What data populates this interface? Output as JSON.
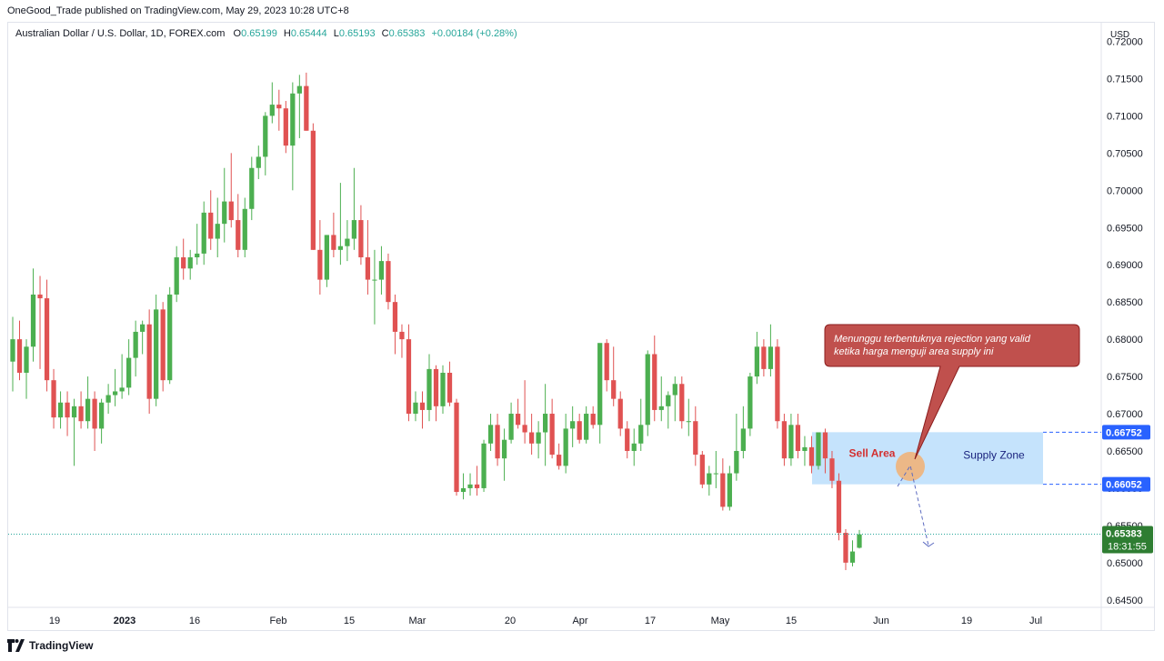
{
  "header": {
    "published_by": "OneGood_Trade published on TradingView.com, May 29, 2023 10:28 UTC+8"
  },
  "legend": {
    "symbol": "Australian Dollar / U.S. Dollar, 1D, FOREX.com",
    "o_label": "O",
    "o_value": "0.65199",
    "h_label": "H",
    "h_value": "0.65444",
    "l_label": "L",
    "l_value": "0.65193",
    "c_label": "C",
    "c_value": "0.65383",
    "change": "+0.00184 (+0.28%)"
  },
  "footer": {
    "brand": "TradingView"
  },
  "colors": {
    "up": "#4caf50",
    "down": "#e05252",
    "zone_fill": "#bbdefb",
    "callout_fill": "#c0504d",
    "callout_border": "#8b1e1e",
    "price_tag": "#2962ff",
    "last_price_tag": "#2e7d32",
    "marker": "#f0b27a"
  },
  "chart_data": {
    "type": "candlestick",
    "currency": "USD",
    "y_range": [
      0.644,
      0.7225
    ],
    "y_ticks": [
      "0.72000",
      "0.71500",
      "0.71000",
      "0.70500",
      "0.70000",
      "0.69500",
      "0.69000",
      "0.68500",
      "0.68000",
      "0.67500",
      "0.67000",
      "0.66500",
      "0.66000",
      "0.65500",
      "0.65000",
      "0.64500"
    ],
    "x_ticks": [
      "19",
      "2023",
      "16",
      "Feb",
      "15",
      "Mar",
      "20",
      "Apr",
      "17",
      "May",
      "15",
      "Jun",
      "19",
      "Jul"
    ],
    "last_price": "0.65383",
    "countdown": "18:31:55",
    "ohlc": [
      [
        0.677,
        0.683,
        0.673,
        0.68
      ],
      [
        0.68,
        0.6825,
        0.6745,
        0.6755
      ],
      [
        0.6755,
        0.68,
        0.672,
        0.679
      ],
      [
        0.679,
        0.6895,
        0.677,
        0.686
      ],
      [
        0.686,
        0.6885,
        0.676,
        0.6855
      ],
      [
        0.6855,
        0.688,
        0.673,
        0.6745
      ],
      [
        0.6745,
        0.676,
        0.668,
        0.6695
      ],
      [
        0.6695,
        0.673,
        0.668,
        0.6715
      ],
      [
        0.6715,
        0.673,
        0.667,
        0.6695
      ],
      [
        0.6695,
        0.672,
        0.663,
        0.671
      ],
      [
        0.671,
        0.673,
        0.668,
        0.669
      ],
      [
        0.669,
        0.675,
        0.668,
        0.672
      ],
      [
        0.672,
        0.673,
        0.665,
        0.668
      ],
      [
        0.668,
        0.672,
        0.666,
        0.6715
      ],
      [
        0.6715,
        0.674,
        0.67,
        0.6725
      ],
      [
        0.6725,
        0.676,
        0.671,
        0.673
      ],
      [
        0.673,
        0.678,
        0.672,
        0.6735
      ],
      [
        0.6735,
        0.68,
        0.6725,
        0.6775
      ],
      [
        0.6775,
        0.6825,
        0.675,
        0.681
      ],
      [
        0.681,
        0.6825,
        0.678,
        0.682
      ],
      [
        0.682,
        0.684,
        0.67,
        0.672
      ],
      [
        0.672,
        0.686,
        0.671,
        0.684
      ],
      [
        0.684,
        0.685,
        0.673,
        0.6745
      ],
      [
        0.6745,
        0.687,
        0.674,
        0.686
      ],
      [
        0.686,
        0.6925,
        0.685,
        0.691
      ],
      [
        0.691,
        0.6935,
        0.688,
        0.6895
      ],
      [
        0.6895,
        0.692,
        0.688,
        0.691
      ],
      [
        0.691,
        0.6955,
        0.69,
        0.6915
      ],
      [
        0.6915,
        0.6985,
        0.69,
        0.697
      ],
      [
        0.697,
        0.7,
        0.692,
        0.6935
      ],
      [
        0.6935,
        0.699,
        0.691,
        0.6955
      ],
      [
        0.6955,
        0.703,
        0.693,
        0.6985
      ],
      [
        0.6985,
        0.705,
        0.695,
        0.696
      ],
      [
        0.696,
        0.6995,
        0.691,
        0.692
      ],
      [
        0.692,
        0.699,
        0.691,
        0.6975
      ],
      [
        0.6975,
        0.7045,
        0.696,
        0.703
      ],
      [
        0.703,
        0.706,
        0.7015,
        0.7045
      ],
      [
        0.7045,
        0.7105,
        0.702,
        0.71
      ],
      [
        0.71,
        0.7145,
        0.709,
        0.7115
      ],
      [
        0.7115,
        0.7135,
        0.708,
        0.711
      ],
      [
        0.711,
        0.712,
        0.705,
        0.706
      ],
      [
        0.706,
        0.7145,
        0.7,
        0.713
      ],
      [
        0.713,
        0.7155,
        0.707,
        0.714
      ],
      [
        0.714,
        0.7158,
        0.708,
        0.708
      ],
      [
        0.708,
        0.709,
        0.692,
        0.692
      ],
      [
        0.692,
        0.696,
        0.686,
        0.688
      ],
      [
        0.688,
        0.694,
        0.687,
        0.694
      ],
      [
        0.694,
        0.697,
        0.691,
        0.692
      ],
      [
        0.692,
        0.701,
        0.69,
        0.6925
      ],
      [
        0.6925,
        0.696,
        0.6905,
        0.6935
      ],
      [
        0.6935,
        0.703,
        0.692,
        0.696
      ],
      [
        0.696,
        0.698,
        0.69,
        0.691
      ],
      [
        0.691,
        0.696,
        0.686,
        0.688
      ],
      [
        0.688,
        0.692,
        0.682,
        0.688
      ],
      [
        0.688,
        0.6925,
        0.686,
        0.6905
      ],
      [
        0.6905,
        0.6915,
        0.684,
        0.685
      ],
      [
        0.685,
        0.686,
        0.678,
        0.681
      ],
      [
        0.681,
        0.682,
        0.6775,
        0.68
      ],
      [
        0.68,
        0.682,
        0.669,
        0.67
      ],
      [
        0.67,
        0.673,
        0.669,
        0.6715
      ],
      [
        0.6715,
        0.673,
        0.668,
        0.6705
      ],
      [
        0.6705,
        0.678,
        0.669,
        0.676
      ],
      [
        0.676,
        0.6765,
        0.669,
        0.671
      ],
      [
        0.671,
        0.6765,
        0.67,
        0.6755
      ],
      [
        0.6755,
        0.677,
        0.671,
        0.6715
      ],
      [
        0.6715,
        0.672,
        0.659,
        0.6595
      ],
      [
        0.6595,
        0.662,
        0.6585,
        0.66
      ],
      [
        0.66,
        0.662,
        0.659,
        0.6605
      ],
      [
        0.6605,
        0.663,
        0.659,
        0.66
      ],
      [
        0.66,
        0.6665,
        0.6595,
        0.666
      ],
      [
        0.666,
        0.67,
        0.665,
        0.6685
      ],
      [
        0.6685,
        0.67,
        0.663,
        0.664
      ],
      [
        0.664,
        0.668,
        0.661,
        0.6665
      ],
      [
        0.6665,
        0.6715,
        0.666,
        0.67
      ],
      [
        0.67,
        0.672,
        0.668,
        0.6685
      ],
      [
        0.6685,
        0.6745,
        0.666,
        0.6675
      ],
      [
        0.6675,
        0.67,
        0.6645,
        0.666
      ],
      [
        0.666,
        0.669,
        0.664,
        0.6675
      ],
      [
        0.6675,
        0.674,
        0.663,
        0.67
      ],
      [
        0.67,
        0.672,
        0.664,
        0.6645
      ],
      [
        0.6645,
        0.666,
        0.6625,
        0.663
      ],
      [
        0.663,
        0.67,
        0.662,
        0.668
      ],
      [
        0.668,
        0.671,
        0.6655,
        0.669
      ],
      [
        0.669,
        0.67,
        0.666,
        0.6665
      ],
      [
        0.6665,
        0.671,
        0.666,
        0.67
      ],
      [
        0.67,
        0.671,
        0.668,
        0.6685
      ],
      [
        0.6685,
        0.679,
        0.666,
        0.6795
      ],
      [
        0.6795,
        0.68,
        0.673,
        0.6745
      ],
      [
        0.6745,
        0.679,
        0.671,
        0.672
      ],
      [
        0.672,
        0.673,
        0.667,
        0.668
      ],
      [
        0.668,
        0.669,
        0.664,
        0.665
      ],
      [
        0.665,
        0.668,
        0.663,
        0.666
      ],
      [
        0.666,
        0.672,
        0.665,
        0.6685
      ],
      [
        0.6685,
        0.6785,
        0.667,
        0.678
      ],
      [
        0.678,
        0.6805,
        0.669,
        0.6705
      ],
      [
        0.6705,
        0.675,
        0.669,
        0.671
      ],
      [
        0.671,
        0.673,
        0.668,
        0.6725
      ],
      [
        0.6725,
        0.675,
        0.669,
        0.674
      ],
      [
        0.674,
        0.675,
        0.668,
        0.669
      ],
      [
        0.669,
        0.672,
        0.667,
        0.669
      ],
      [
        0.669,
        0.671,
        0.663,
        0.6645
      ],
      [
        0.6645,
        0.665,
        0.66,
        0.6605
      ],
      [
        0.6605,
        0.663,
        0.659,
        0.662
      ],
      [
        0.662,
        0.665,
        0.66,
        0.662
      ],
      [
        0.662,
        0.664,
        0.657,
        0.6575
      ],
      [
        0.6575,
        0.663,
        0.657,
        0.662
      ],
      [
        0.662,
        0.67,
        0.661,
        0.665
      ],
      [
        0.665,
        0.671,
        0.664,
        0.668
      ],
      [
        0.668,
        0.6755,
        0.667,
        0.675
      ],
      [
        0.675,
        0.681,
        0.674,
        0.679
      ],
      [
        0.679,
        0.68,
        0.675,
        0.676
      ],
      [
        0.676,
        0.682,
        0.675,
        0.679
      ],
      [
        0.679,
        0.68,
        0.668,
        0.669
      ],
      [
        0.669,
        0.67,
        0.663,
        0.664
      ],
      [
        0.664,
        0.67,
        0.663,
        0.6685
      ],
      [
        0.6685,
        0.67,
        0.664,
        0.665
      ],
      [
        0.665,
        0.667,
        0.663,
        0.6655
      ],
      [
        0.6655,
        0.667,
        0.662,
        0.663
      ],
      [
        0.663,
        0.667,
        0.6625,
        0.6675
      ],
      [
        0.6675,
        0.668,
        0.662,
        0.664
      ],
      [
        0.664,
        0.665,
        0.66,
        0.661
      ],
      [
        0.661,
        0.662,
        0.653,
        0.654
      ],
      [
        0.654,
        0.6545,
        0.649,
        0.65
      ],
      [
        0.65,
        0.653,
        0.6495,
        0.6515
      ],
      [
        0.652,
        0.6544,
        0.6519,
        0.6538
      ]
    ],
    "zones": [
      {
        "label": "Supply Zone",
        "top": 0.66752,
        "bottom": 0.66052
      }
    ],
    "zone_text_left": "Sell Area",
    "price_tags": [
      "0.66752",
      "0.66052"
    ],
    "callout": "Menunggu terbentuknya rejection yang valid ketika harga menguji area supply ini"
  }
}
